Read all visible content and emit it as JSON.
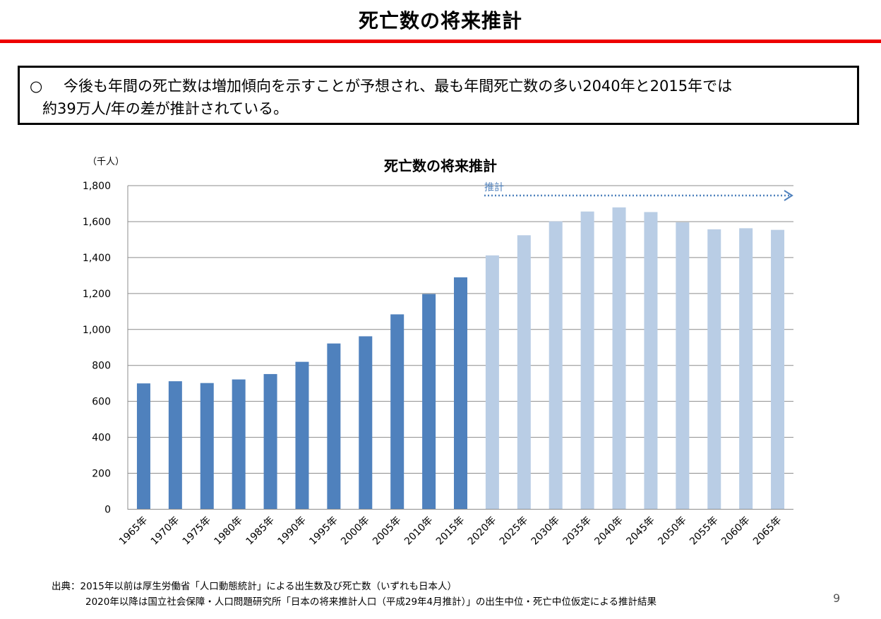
{
  "header": {
    "title": "死亡数の将来推計"
  },
  "summary": {
    "marker": "○",
    "line1": "今後も年間の死亡数は増加傾向を示すことが予想され、最も年間死亡数の多い2040年と2015年では",
    "line2": "約39万人/年の差が推計されている。"
  },
  "chart_data": {
    "type": "bar",
    "title": "死亡数の将来推計",
    "unit_label": "（千人）",
    "projection_label": "推計",
    "categories": [
      "1965年",
      "1970年",
      "1975年",
      "1980年",
      "1985年",
      "1990年",
      "1995年",
      "2000年",
      "2005年",
      "2010年",
      "2015年",
      "2020年",
      "2025年",
      "2030年",
      "2035年",
      "2040年",
      "2045年",
      "2050年",
      "2055年",
      "2060年",
      "2065年"
    ],
    "values": [
      700,
      712,
      702,
      722,
      752,
      820,
      922,
      962,
      1084,
      1197,
      1290,
      1412,
      1524,
      1601,
      1656,
      1679,
      1653,
      1596,
      1557,
      1563,
      1554
    ],
    "projected_from_index": 11,
    "ylim": [
      0,
      1800
    ],
    "yticks": [
      0,
      200,
      400,
      600,
      800,
      1000,
      1200,
      1400,
      1600,
      1800
    ],
    "ytick_labels": [
      "0",
      "200",
      "400",
      "600",
      "800",
      "1,000",
      "1,200",
      "1,400",
      "1,600",
      "1,800"
    ],
    "grid": true,
    "colors": {
      "actual": "#4f81bd",
      "projected": "#b9cde5",
      "arrow": "#4f81bd",
      "grid": "#8c8c8c"
    }
  },
  "source": {
    "line1": "出典：2015年以前は厚生労働省「人口動態統計」による出生数及び死亡数（いずれも日本人）",
    "line2": "2020年以降は国立社会保障・人口問題研究所「日本の将来推計人口（平成29年4月推計）」の出生中位・死亡中位仮定による推計結果"
  },
  "page_number": "9"
}
